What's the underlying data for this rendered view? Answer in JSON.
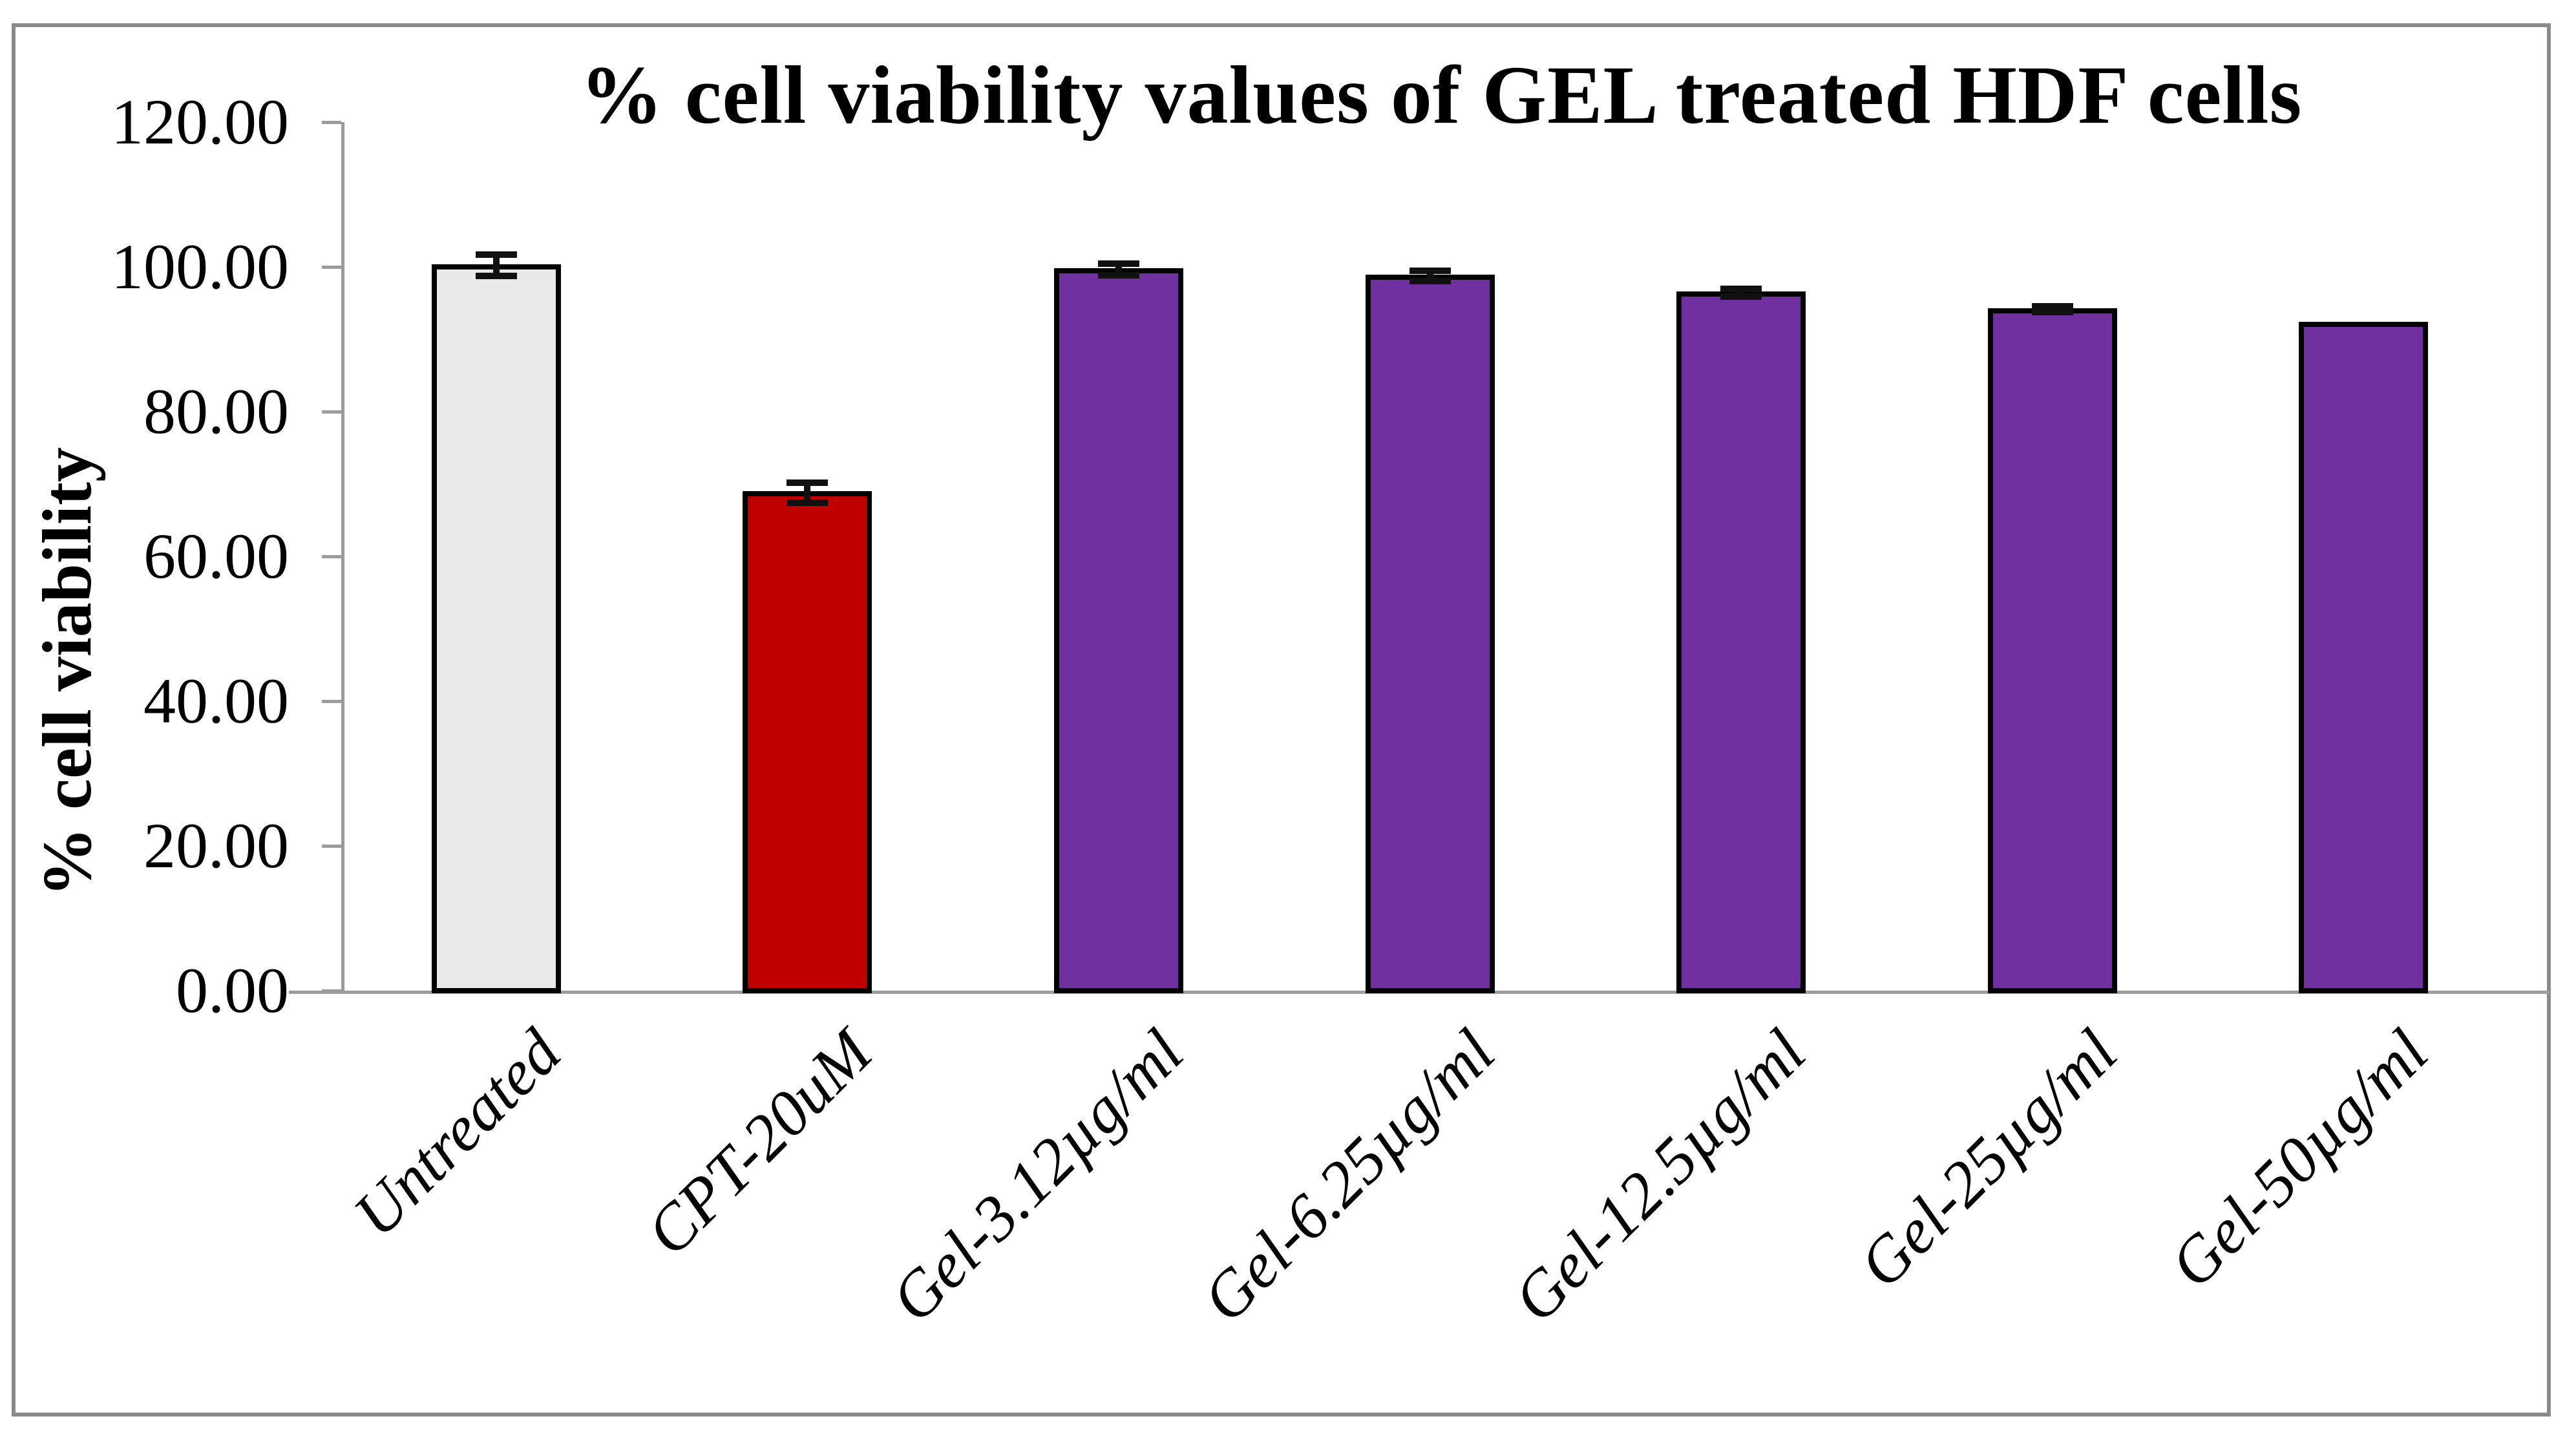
{
  "chart_data": {
    "type": "bar",
    "title": "% cell viability values of GEL treated HDF cells",
    "ylabel": "% cell viability",
    "xlabel": "",
    "ylim": [
      0,
      120
    ],
    "ytick_interval": 20,
    "ytick_labels": [
      "0.00",
      "20.00",
      "40.00",
      "60.00",
      "80.00",
      "100.00",
      "120.00"
    ],
    "grid": false,
    "legend": false,
    "categories": [
      "Untreated",
      "CPT-20uM",
      "Gel-3.12µg/ml",
      "Gel-6.25µg/ml",
      "Gel-12.5µg/ml",
      "Gel-25µg/ml",
      "Gel-50µg/ml"
    ],
    "series": [
      {
        "name": "% cell viability",
        "values": [
          100.4,
          69.0,
          99.8,
          98.9,
          96.6,
          94.3,
          92.4
        ],
        "errors": [
          1.5,
          1.4,
          0.8,
          0.7,
          0.5,
          0.4,
          0
        ]
      }
    ],
    "colors": {
      "bar_fills": [
        "#E9E9E9",
        "#C00000",
        "#7030A0",
        "#7030A0",
        "#7030A0",
        "#7030A0",
        "#7030A0"
      ],
      "bar_border": "#000000",
      "error_bar": "#111111",
      "axis_line": "#9C9C9C",
      "frame_border": "#8A8A8A",
      "text": "#000000",
      "background": "#FFFFFF"
    }
  }
}
